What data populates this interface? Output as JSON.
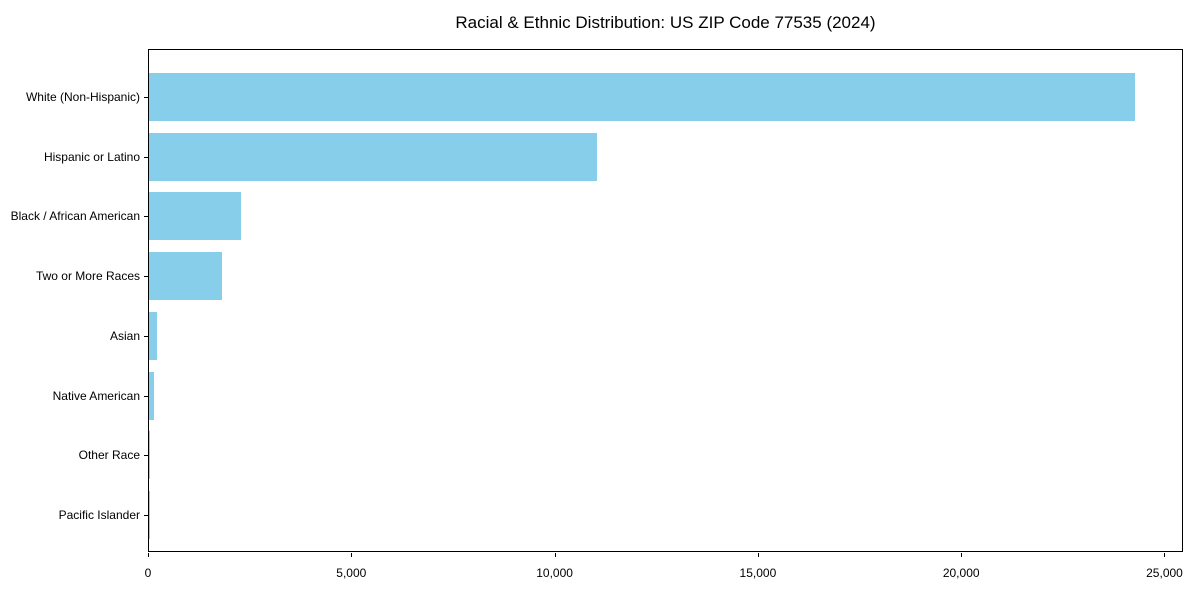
{
  "chart_data": {
    "type": "bar",
    "orientation": "horizontal",
    "title": "Racial & Ethnic Distribution: US ZIP Code 77535 (2024)",
    "categories": [
      "White (Non-Hispanic)",
      "Hispanic or Latino",
      "Black / African American",
      "Two or More Races",
      "Asian",
      "Native American",
      "Other Race",
      "Pacific Islander"
    ],
    "values": [
      24250,
      11020,
      2260,
      1790,
      200,
      120,
      25,
      8
    ],
    "xlabel": "",
    "ylabel": "",
    "xlim": [
      0,
      25455
    ],
    "x_ticks": [
      0,
      5000,
      10000,
      15000,
      20000,
      25000
    ],
    "x_tick_labels": [
      "0",
      "5,000",
      "10,000",
      "15,000",
      "20,000",
      "25,000"
    ],
    "grid": false,
    "legend": "none",
    "bar_color": "#87CEEB",
    "axis_color": "#000000",
    "background_color": "#ffffff"
  }
}
